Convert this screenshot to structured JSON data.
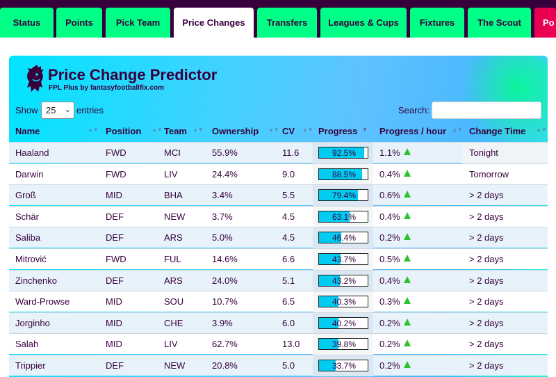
{
  "nav": {
    "tabs": [
      {
        "label": "Status"
      },
      {
        "label": "Points"
      },
      {
        "label": "Pick Team"
      },
      {
        "label": "Price Changes"
      },
      {
        "label": "Transfers"
      },
      {
        "label": "Leagues & Cups"
      },
      {
        "label": "Fixtures"
      },
      {
        "label": "The Scout"
      },
      {
        "label": "Po"
      }
    ],
    "active_tab": "Price Changes"
  },
  "panel": {
    "title": "Price Change Predictor",
    "subtitle": "FPL Plus by fantasyfootballfix.com"
  },
  "controls": {
    "show_label": "Show",
    "entries_value": "25",
    "entries_label": "entries",
    "search_label": "Search:",
    "search_value": ""
  },
  "table": {
    "columns": [
      "Name",
      "Position",
      "Team",
      "Ownership",
      "CV",
      "Progress",
      "Progress / hour",
      "Change Time"
    ],
    "rows": [
      {
        "name": "Haaland",
        "position": "FWD",
        "team": "MCI",
        "ownership": "55.9%",
        "cv": "11.6",
        "progress_label": "92.5%",
        "progress": 0.925,
        "per_hour": "1.1%",
        "change_time": "Tonight"
      },
      {
        "name": "Darwin",
        "position": "FWD",
        "team": "LIV",
        "ownership": "24.4%",
        "cv": "9.0",
        "progress_label": "88.5%",
        "progress": 0.885,
        "per_hour": "0.4%",
        "change_time": "Tomorrow"
      },
      {
        "name": "Groß",
        "position": "MID",
        "team": "BHA",
        "ownership": "3.4%",
        "cv": "5.5",
        "progress_label": "79.4%",
        "progress": 0.794,
        "per_hour": "0.6%",
        "change_time": "> 2 days"
      },
      {
        "name": "Schär",
        "position": "DEF",
        "team": "NEW",
        "ownership": "3.7%",
        "cv": "4.5",
        "progress_label": "63.1%",
        "progress": 0.631,
        "per_hour": "0.4%",
        "change_time": "> 2 days"
      },
      {
        "name": "Saliba",
        "position": "DEF",
        "team": "ARS",
        "ownership": "5.0%",
        "cv": "4.5",
        "progress_label": "46.4%",
        "progress": 0.464,
        "per_hour": "0.2%",
        "change_time": "> 2 days"
      },
      {
        "name": "Mitrović",
        "position": "FWD",
        "team": "FUL",
        "ownership": "14.6%",
        "cv": "6.6",
        "progress_label": "43.7%",
        "progress": 0.437,
        "per_hour": "0.5%",
        "change_time": "> 2 days"
      },
      {
        "name": "Zinchenko",
        "position": "DEF",
        "team": "ARS",
        "ownership": "24.0%",
        "cv": "5.1",
        "progress_label": "43.2%",
        "progress": 0.432,
        "per_hour": "0.4%",
        "change_time": "> 2 days"
      },
      {
        "name": "Ward-Prowse",
        "position": "MID",
        "team": "SOU",
        "ownership": "10.7%",
        "cv": "6.5",
        "progress_label": "40.3%",
        "progress": 0.403,
        "per_hour": "0.3%",
        "change_time": "> 2 days"
      },
      {
        "name": "Jorginho",
        "position": "MID",
        "team": "CHE",
        "ownership": "3.9%",
        "cv": "6.0",
        "progress_label": "40.2%",
        "progress": 0.402,
        "per_hour": "0.2%",
        "change_time": "> 2 days"
      },
      {
        "name": "Salah",
        "position": "MID",
        "team": "LIV",
        "ownership": "62.7%",
        "cv": "13.0",
        "progress_label": "39.8%",
        "progress": 0.398,
        "per_hour": "0.2%",
        "change_time": "> 2 days"
      },
      {
        "name": "Trippier",
        "position": "DEF",
        "team": "NEW",
        "ownership": "20.8%",
        "cv": "5.0",
        "progress_label": "33.7%",
        "progress": 0.337,
        "per_hour": "0.2%",
        "change_time": "> 2 days"
      }
    ]
  },
  "colors": {
    "brand_purple": "#37003c",
    "brand_green": "#00ff87",
    "brand_pink": "#e90052",
    "progress_fill": "#00ccf2",
    "up_arrow": "#2cc22c"
  },
  "icons": {
    "logo": "premier-league-lion-icon",
    "sort": "sort-icon",
    "trend_up": "arrow-up-icon",
    "dropdown": "chevron-down-icon"
  }
}
